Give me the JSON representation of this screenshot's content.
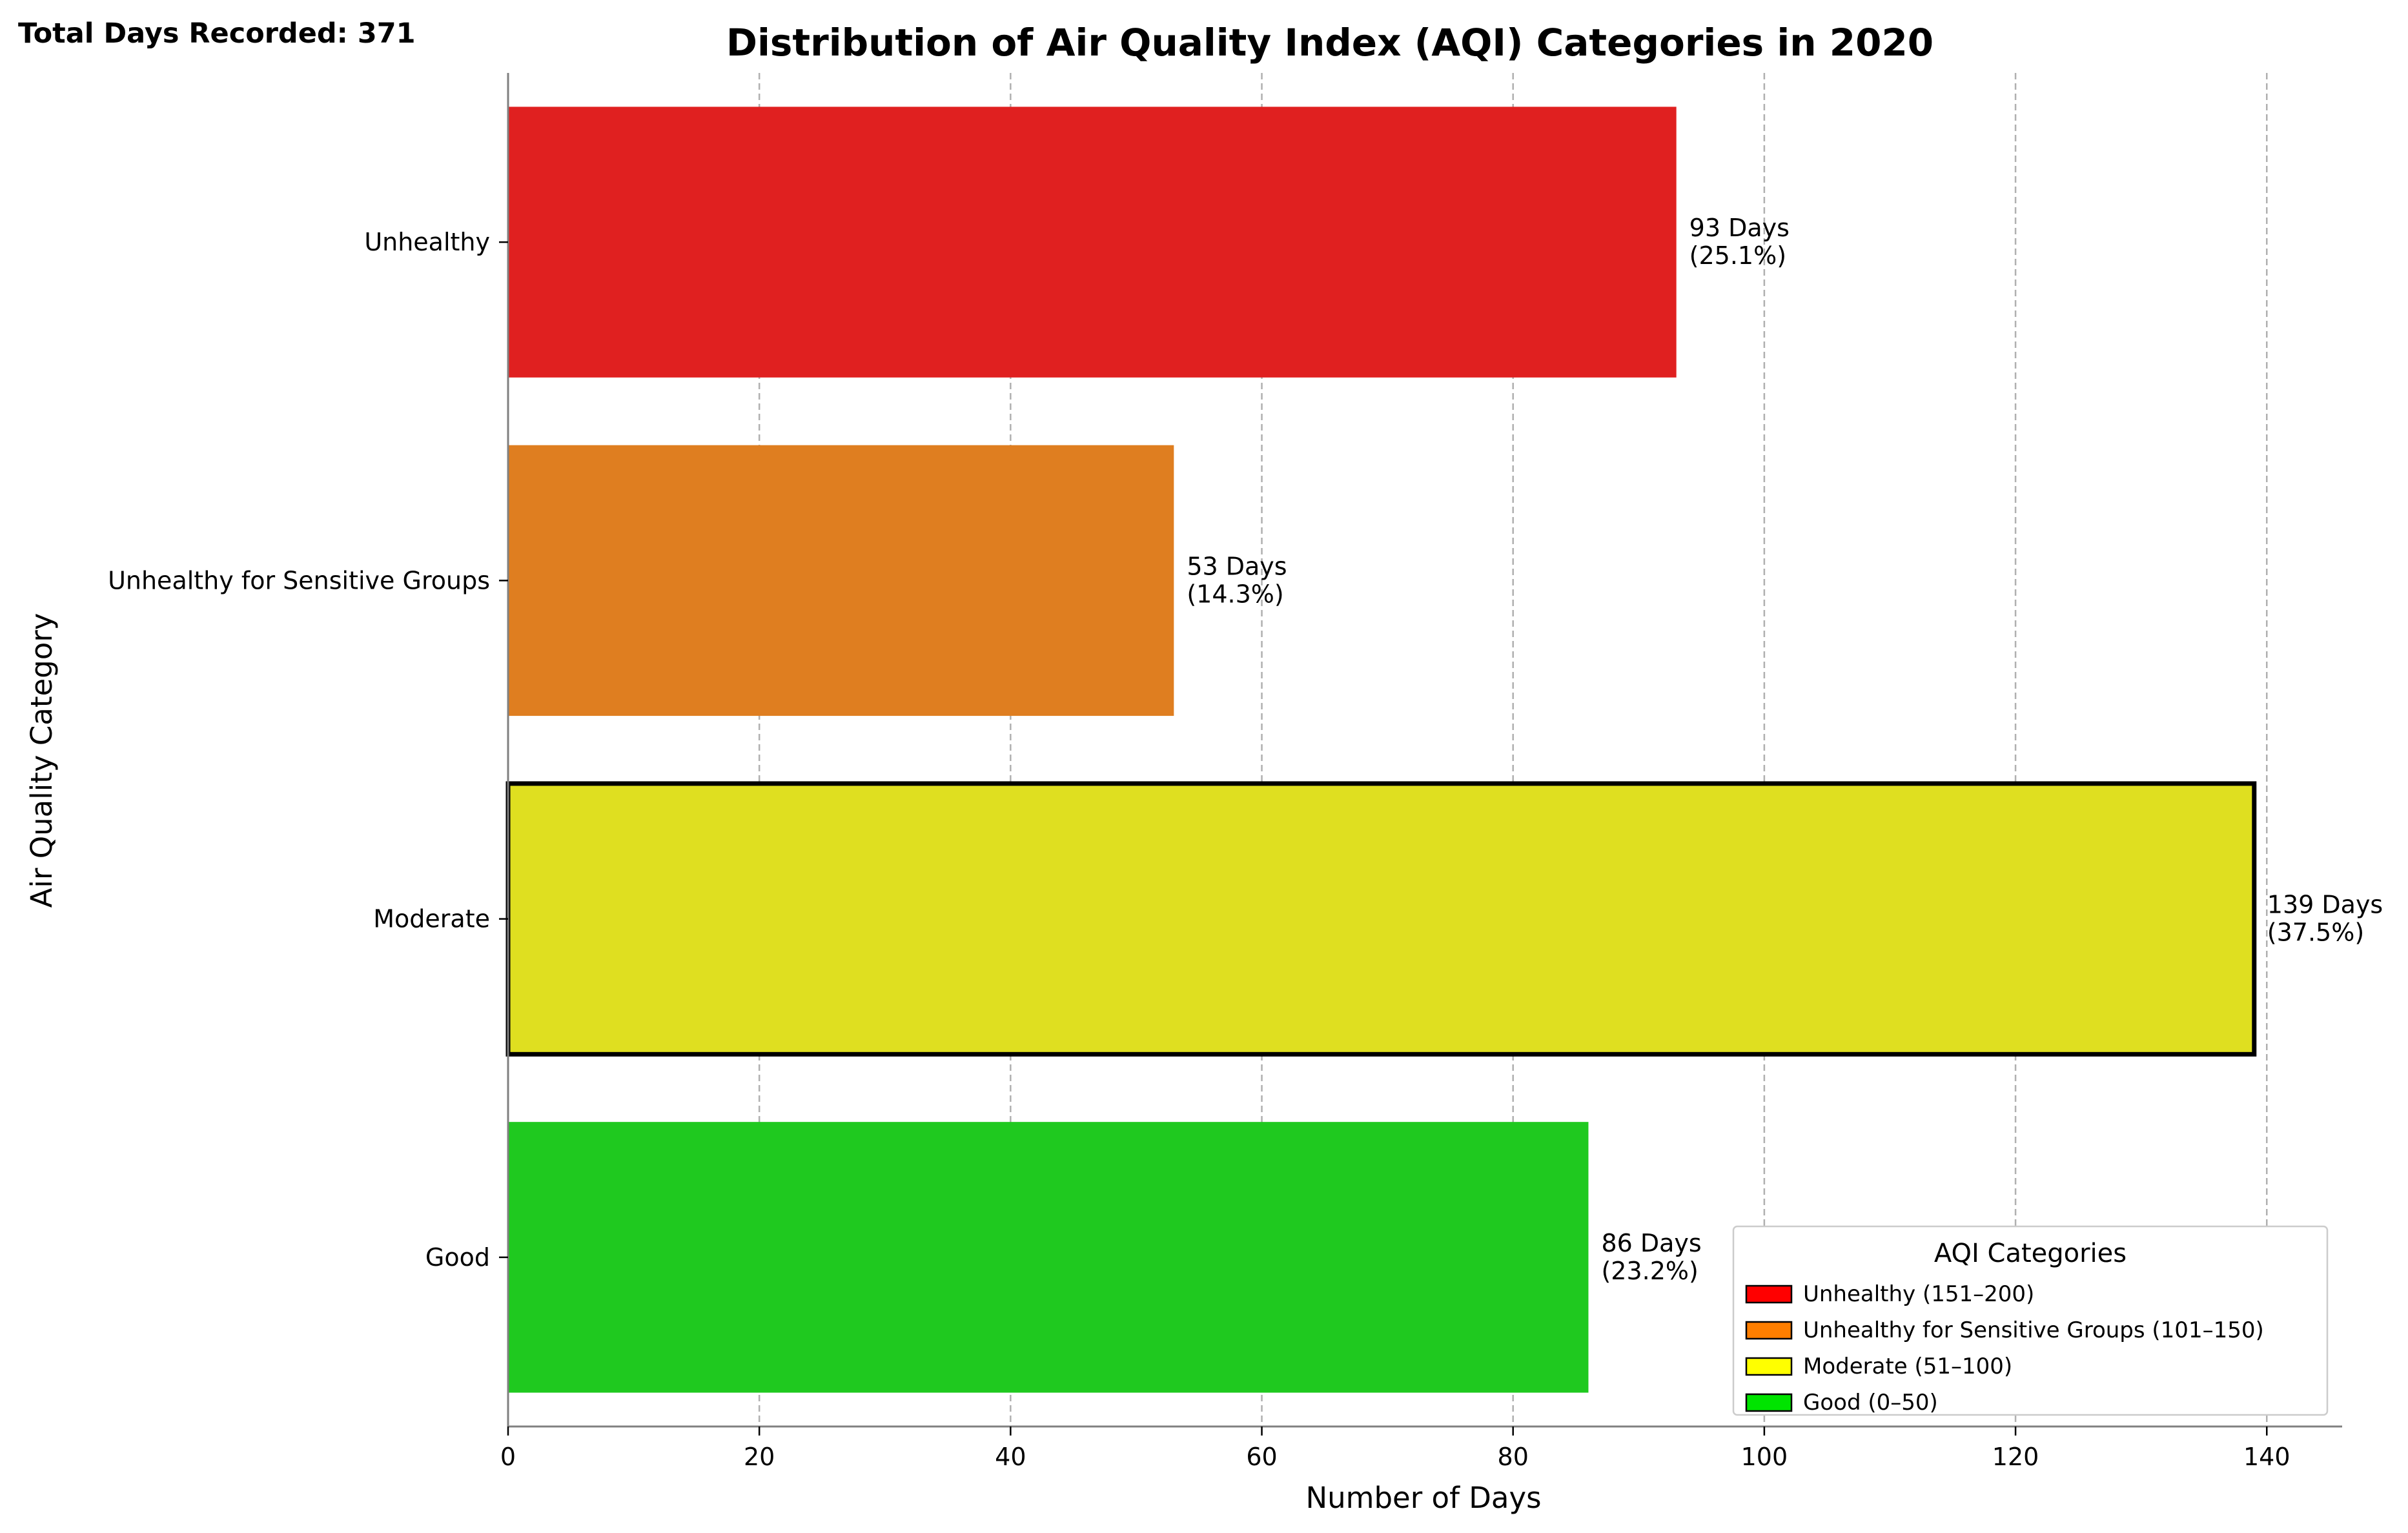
{
  "chart_data": {
    "type": "bar",
    "orientation": "horizontal",
    "title": "Distribution of Air Quality Index (AQI) Categories in 2020",
    "xlabel": "Number of Days",
    "ylabel": "Air Quality Category",
    "xlim": [
      0,
      146
    ],
    "x_ticks": [
      0,
      20,
      40,
      60,
      80,
      100,
      120,
      140
    ],
    "grid": "vertical dashed",
    "categories": [
      "Unhealthy",
      "Unhealthy for Sensitive Groups",
      "Moderate",
      "Good"
    ],
    "values": [
      93,
      53,
      139,
      86
    ],
    "colors": [
      "#e02020",
      "#df7e20",
      "#dfdf20",
      "#1fc91f"
    ],
    "highlighted": "Moderate",
    "bar_labels": [
      [
        "93 Days",
        "(25.1%)"
      ],
      [
        "53 Days",
        "(14.3%)"
      ],
      [
        "139 Days",
        "(37.5%)"
      ],
      [
        "86 Days",
        "(23.2%)"
      ]
    ],
    "annotation": "Total Days Recorded: 371",
    "legend": {
      "title": "AQI Categories",
      "position": "bottom-right",
      "entries": [
        {
          "label": "Unhealthy (151–200)",
          "color": "#ff0000"
        },
        {
          "label": "Unhealthy for Sensitive Groups (101–150)",
          "color": "#ff7e00"
        },
        {
          "label": "Moderate (51–100)",
          "color": "#ffff00"
        },
        {
          "label": "Good (0–50)",
          "color": "#00e400"
        }
      ]
    }
  }
}
